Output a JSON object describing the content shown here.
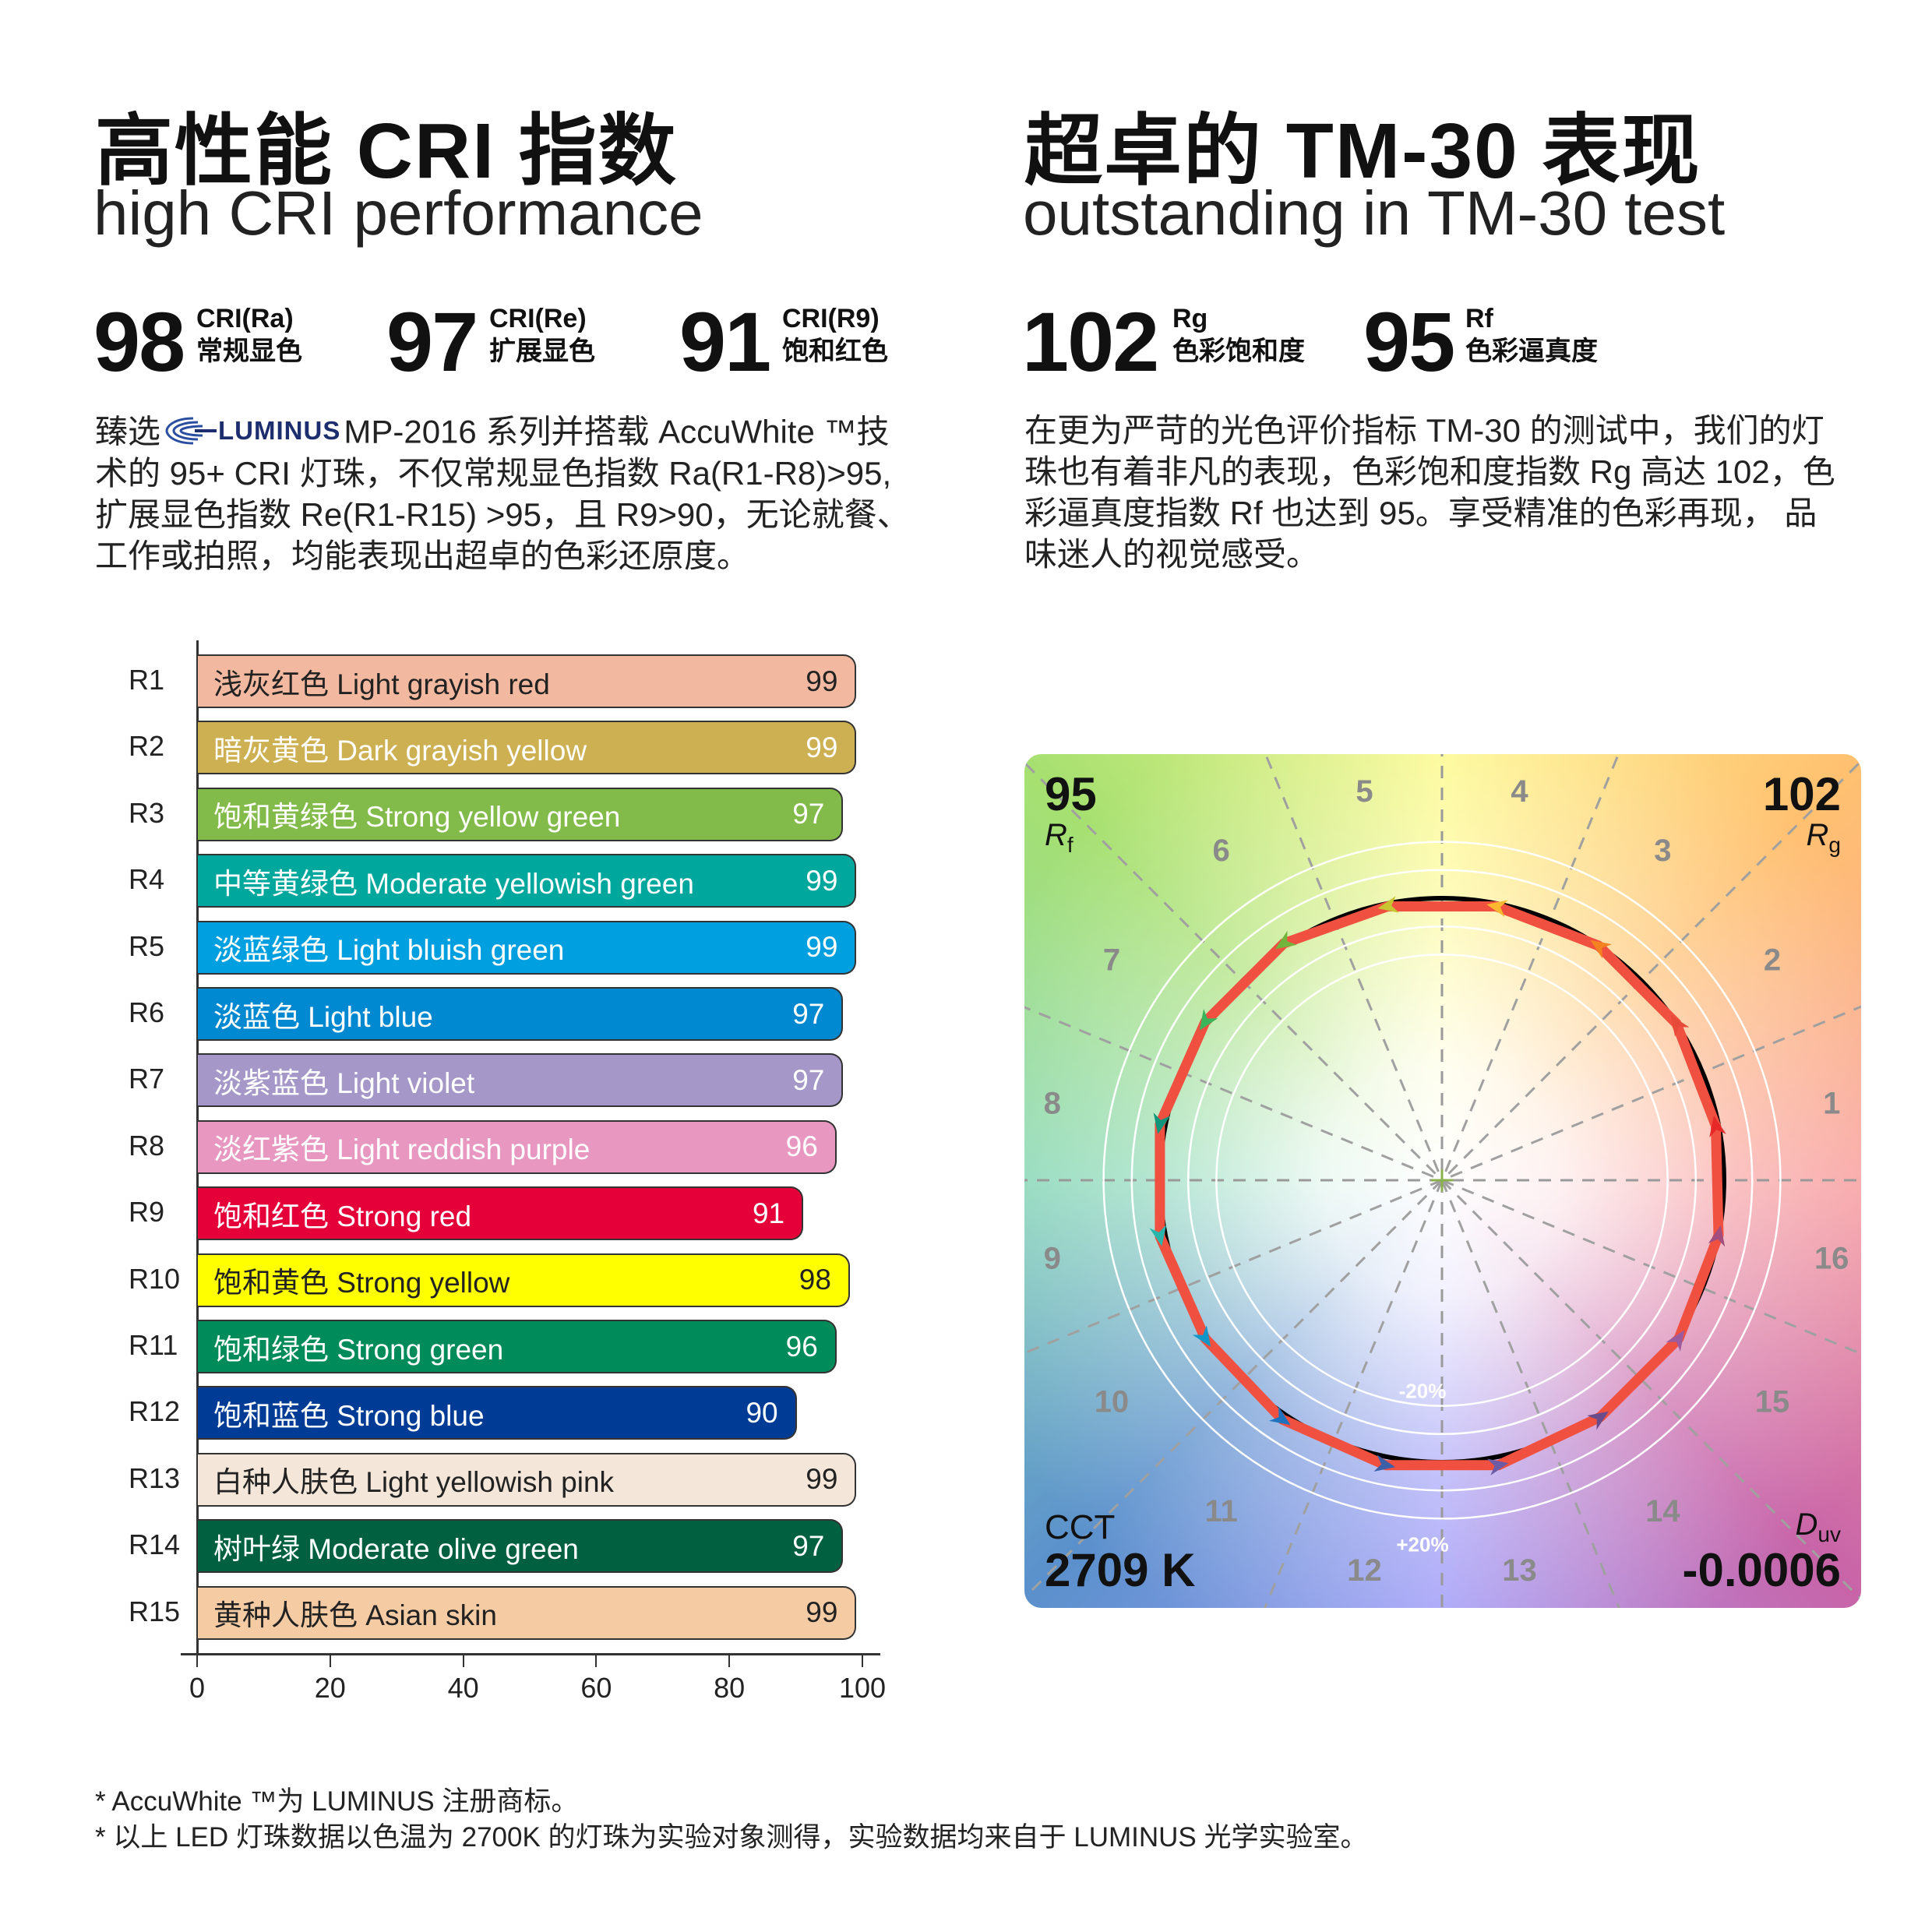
{
  "left": {
    "title": "高性能 CRI 指数",
    "subtitle": "high CRI performance",
    "stats": [
      {
        "value": "98",
        "label1": "CRI(Ra)",
        "label2": "常规显色"
      },
      {
        "value": "97",
        "label1": "CRI(Re)",
        "label2": "扩展显色"
      },
      {
        "value": "91",
        "label1": "CRI(R9)",
        "label2": "饱和红色"
      }
    ],
    "para_first_pre": "臻选",
    "logo_text": "LUMINUS",
    "para_first_post": "MP-2016 系列并搭载 AccuWhite ™技",
    "para_lines": [
      "术的 95+ CRI 灯珠，不仅常规显色指数 Ra(R1-R8)>95,",
      "扩展显色指数 Re(R1-R15) >95，且 R9>90，无论就餐、",
      "工作或拍照，均能表现出超卓的色彩还原度。"
    ]
  },
  "right": {
    "title": "超卓的 TM-30 表现",
    "subtitle": "outstanding in TM-30 test",
    "stats": [
      {
        "value": "102",
        "label1": "Rg",
        "label2": "色彩饱和度"
      },
      {
        "value": "95",
        "label1": "Rf",
        "label2": "色彩逼真度"
      }
    ],
    "para_lines": [
      "在更为严苛的光色评价指标 TM-30 的测试中，我们的灯",
      "珠也有着非凡的表现，色彩饱和度指数 Rg 高达 102，色",
      "彩逼真度指数 Rf 也达到 95。享受精准的色彩再现， 品",
      "味迷人的视觉感受。"
    ]
  },
  "chart_data": [
    {
      "type": "bar",
      "orientation": "horizontal",
      "categories": [
        "R1",
        "R2",
        "R3",
        "R4",
        "R5",
        "R6",
        "R7",
        "R8",
        "R9",
        "R10",
        "R11",
        "R12",
        "R13",
        "R14",
        "R15"
      ],
      "labels": [
        "浅灰红色 Light grayish red",
        "暗灰黄色 Dark grayish yellow",
        "饱和黄绿色 Strong yellow green",
        "中等黄绿色 Moderate yellowish green",
        "淡蓝绿色 Light bluish green",
        "淡蓝色 Light blue",
        "淡紫蓝色 Light violet",
        "淡红紫色 Light reddish purple",
        "饱和红色 Strong red",
        "饱和黄色 Strong yellow",
        "饱和绿色 Strong green",
        "饱和蓝色 Strong blue",
        "白种人肤色 Light yellowish pink",
        "树叶绿 Moderate olive green",
        "黄种人肤色 Asian skin"
      ],
      "values": [
        99,
        99,
        97,
        99,
        99,
        97,
        97,
        96,
        91,
        98,
        96,
        90,
        99,
        97,
        99
      ],
      "colors": [
        "#f2b9a0",
        "#cdb052",
        "#83bb4b",
        "#00a79d",
        "#00a0e0",
        "#0088d0",
        "#a597c8",
        "#e898c0",
        "#e6003a",
        "#ffff00",
        "#008b5a",
        "#003c96",
        "#f4e6d8",
        "#006040",
        "#f5cba4"
      ],
      "text_colors": [
        "#222",
        "#fff",
        "#fff",
        "#fff",
        "#fff",
        "#fff",
        "#fff",
        "#fff",
        "#fff",
        "#222",
        "#fff",
        "#fff",
        "#222",
        "#fff",
        "#222"
      ],
      "xlim": [
        0,
        100
      ],
      "xticks": [
        "0",
        "20",
        "40",
        "60",
        "80",
        "100"
      ]
    },
    {
      "type": "polar-vector",
      "bins": [
        "1",
        "2",
        "3",
        "4",
        "5",
        "6",
        "7",
        "8",
        "9",
        "10",
        "11",
        "12",
        "13",
        "14",
        "15",
        "16"
      ],
      "chroma_shift_pct": [
        -1,
        0,
        0,
        -1,
        -1,
        1,
        1,
        2,
        2,
        1,
        2,
        3,
        3,
        1,
        1,
        0
      ],
      "bin_colors": [
        "#e62828",
        "#e84a3a",
        "#f58220",
        "#fbb830",
        "#c8c432",
        "#72b43c",
        "#3ab55a",
        "#10957a",
        "#28b5ab",
        "#1396c8",
        "#1e73c0",
        "#3b5fa8",
        "#6b5ca5",
        "#6a4c8c",
        "#9b5b9c",
        "#a34d7e"
      ],
      "reference_color": "#000000",
      "test_color": "#f05040",
      "ring_labels": [
        "-20%",
        "+20%"
      ],
      "Rf": {
        "value": "95",
        "symbol": "R",
        "sub": "f"
      },
      "Rg": {
        "value": "102",
        "symbol": "R",
        "sub": "g"
      },
      "CCT": {
        "label": "CCT",
        "value": "2709 K"
      },
      "Duv": {
        "symbol": "D",
        "sub": "uv",
        "value": "-0.0006"
      }
    }
  ],
  "footnotes": [
    "* AccuWhite ™为 LUMINUS 注册商标。",
    "* 以上 LED 灯珠数据以色温为 2700K 的灯珠为实验对象测得，实验数据均来自于 LUMINUS 光学实验室。"
  ]
}
